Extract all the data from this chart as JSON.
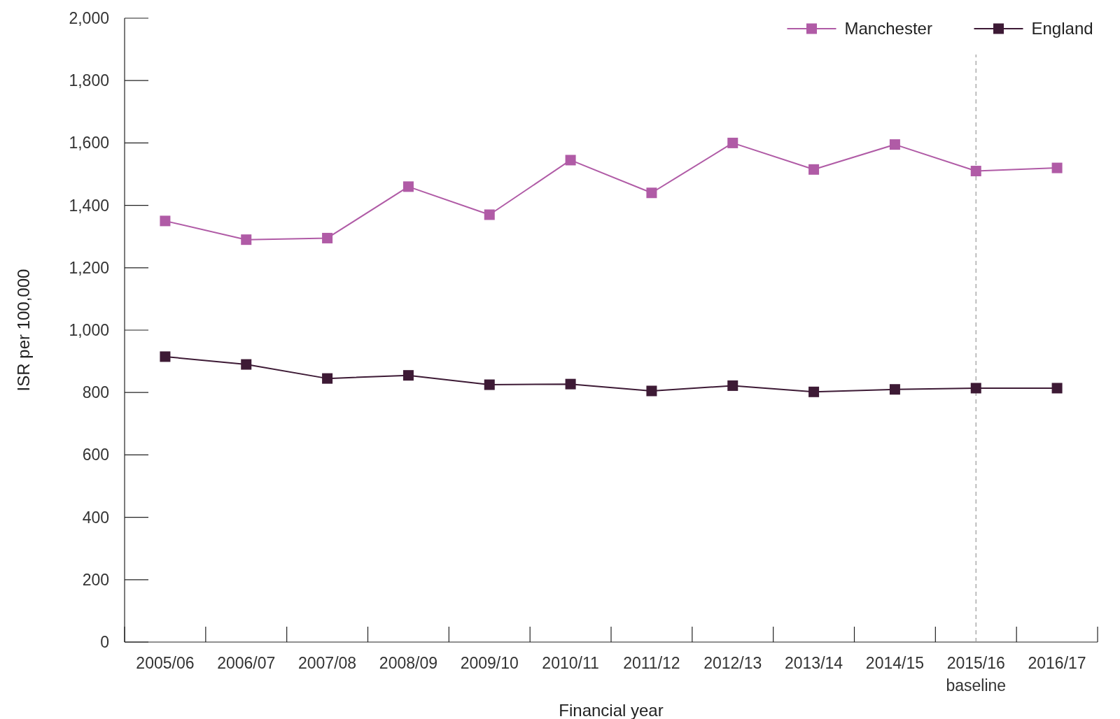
{
  "chart_data": {
    "type": "line",
    "xlabel": "Financial year",
    "ylabel": "ISR per 100,000",
    "categories": [
      "2005/06",
      "2006/07",
      "2007/08",
      "2008/09",
      "2009/10",
      "2010/11",
      "2011/12",
      "2012/13",
      "2013/14",
      "2014/15",
      "2015/16",
      "2016/17"
    ],
    "series": [
      {
        "name": "Manchester",
        "color": "#b05ba6",
        "values": [
          1350,
          1290,
          1295,
          1460,
          1370,
          1545,
          1440,
          1600,
          1515,
          1595,
          1510,
          1520
        ]
      },
      {
        "name": "England",
        "color": "#3d1a35",
        "values": [
          915,
          890,
          845,
          855,
          825,
          827,
          805,
          822,
          802,
          810,
          814,
          814
        ]
      }
    ],
    "ylim": [
      0,
      2000
    ],
    "yticks": [
      {
        "value": 0,
        "label": "0"
      },
      {
        "value": 200,
        "label": "200"
      },
      {
        "value": 400,
        "label": "400"
      },
      {
        "value": 600,
        "label": "600"
      },
      {
        "value": 800,
        "label": "800"
      },
      {
        "value": 1000,
        "label": "1,000"
      },
      {
        "value": 1200,
        "label": "1,200"
      },
      {
        "value": 1400,
        "label": "1,400"
      },
      {
        "value": 1600,
        "label": "1,600"
      },
      {
        "value": 1800,
        "label": "1,800"
      },
      {
        "value": 2000,
        "label": "2,000"
      }
    ],
    "ref_lines": [
      {
        "axis": "x",
        "value": "2015/16",
        "label": "baseline",
        "color": "#999999",
        "line_style": "dashed"
      }
    ],
    "grid": false,
    "legend": "top right",
    "marker": "square",
    "line_style": "solid"
  }
}
